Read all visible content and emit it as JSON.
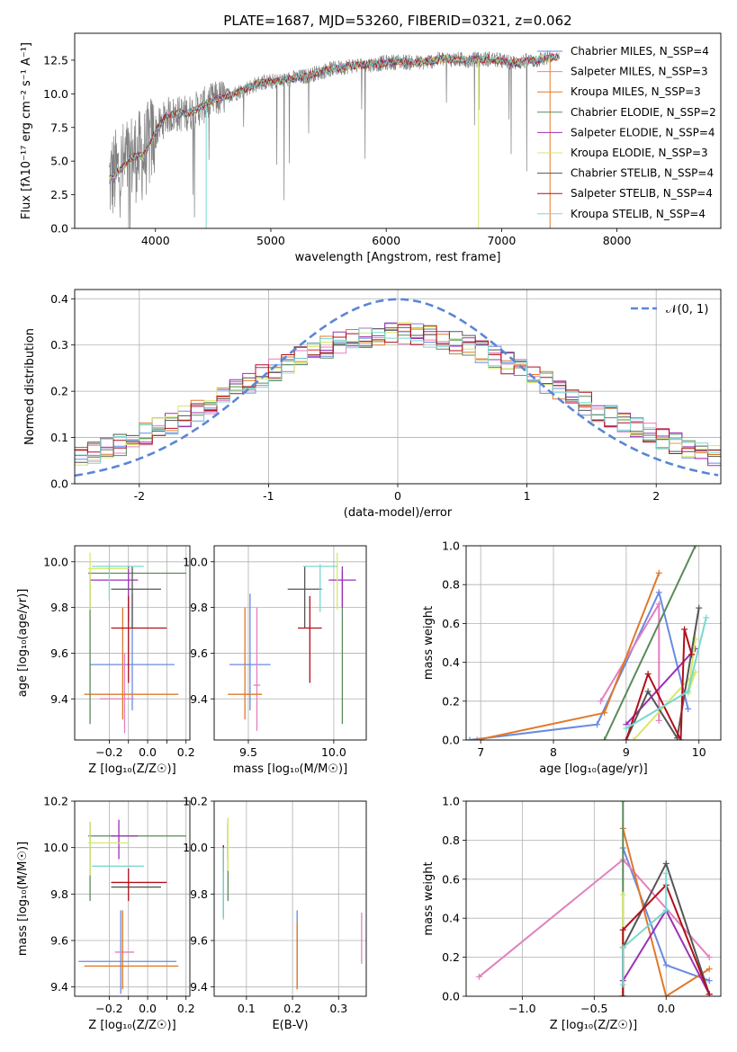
{
  "figure_title": "PLATE=1687, MJD=53260, FIBERID=0321, z=0.062",
  "colors": {
    "Chabrier MILES": "#6a8ae0",
    "Salpeter MILES": "#e47fbf",
    "Kroupa MILES": "#e0792a",
    "Chabrier ELODIE": "#5a8a5a",
    "Salpeter ELODIE": "#9b30b5",
    "Kroupa ELODIE": "#d6e86a",
    "Chabrier STELIB": "#555555",
    "Salpeter STELIB": "#b0101a",
    "Kroupa STELIB": "#78d8d0",
    "data": "#808080",
    "normal": "#5b86d6"
  },
  "chart_data": [
    {
      "id": "spectrum",
      "type": "line",
      "title": "PLATE=1687, MJD=53260, FIBERID=0321, z=0.062",
      "xlabel": "wavelength [Angstrom, rest frame]",
      "ylabel": "Flux [fλ10⁻¹⁷ erg cm⁻² s⁻¹ A⁻¹]",
      "xlim": [
        3300,
        8900
      ],
      "ylim": [
        0,
        14.5
      ],
      "xticks": [
        4000,
        5000,
        6000,
        7000,
        8000
      ],
      "yticks": [
        0.0,
        2.5,
        5.0,
        7.5,
        10.0,
        12.5
      ],
      "legend_position": "right",
      "legend": [
        "Chabrier MILES, N_SSP=4",
        "Salpeter MILES, N_SSP=3",
        "Kroupa MILES, N_SSP=3",
        "Chabrier ELODIE, N_SSP=2",
        "Salpeter ELODIE, N_SSP=4",
        "Kroupa ELODIE, N_SSP=3",
        "Chabrier STELIB, N_SSP=4",
        "Salpeter STELIB, N_SSP=4",
        "Kroupa STELIB, N_SSP=4"
      ],
      "legend_models": [
        "Chabrier MILES",
        "Salpeter MILES",
        "Kroupa MILES",
        "Chabrier ELODIE",
        "Salpeter ELODIE",
        "Kroupa ELODIE",
        "Chabrier STELIB",
        "Salpeter STELIB",
        "Kroupa STELIB"
      ],
      "continuum": {
        "x": [
          3600,
          3700,
          3800,
          3900,
          4000,
          4100,
          4300,
          4500,
          4700,
          4900,
          5100,
          5300,
          5500,
          5700,
          5900,
          6100,
          6300,
          6500,
          6700,
          6900,
          7100,
          7300,
          7500
        ],
        "y": [
          3.6,
          4.4,
          5.3,
          5.4,
          7.2,
          8.4,
          8.6,
          9.5,
          10.1,
          10.8,
          11.0,
          11.3,
          11.8,
          12.1,
          12.2,
          12.4,
          12.3,
          12.6,
          12.5,
          12.6,
          12.3,
          12.5,
          12.8
        ]
      }
    },
    {
      "id": "residuals",
      "type": "line",
      "xlabel": "(data-model)/error",
      "ylabel": "Normed distribution",
      "xlim": [
        -2.5,
        2.5
      ],
      "ylim": [
        0,
        0.42
      ],
      "xticks": [
        -2,
        -1,
        0,
        1,
        2
      ],
      "yticks": [
        0.0,
        0.1,
        0.2,
        0.3,
        0.4
      ],
      "grid": true,
      "legend_position": "top-right",
      "legend": [
        "𝒩(0, 1)"
      ]
    },
    {
      "id": "age_vs_Z",
      "type": "scatter",
      "xlabel": "Z [log₁₀(Z/Z☉)]",
      "ylabel": "age [log₁₀(age/yr)]",
      "xlim": [
        -0.38,
        0.22
      ],
      "ylim": [
        9.22,
        10.07
      ],
      "xticks": [
        -0.2,
        -0.1,
        0.0,
        0.1,
        0.2
      ],
      "xticklabels": [
        "−0.2",
        "",
        "0.0",
        "",
        "0.2"
      ],
      "yticks": [
        9.4,
        9.6,
        9.8,
        10.0
      ],
      "grid": true,
      "series": [
        {
          "model": "Chabrier MILES",
          "x": -0.08,
          "xerr": [
            0.22,
            0.22
          ],
          "y": 9.55,
          "yerr": [
            0.2,
            0.31
          ]
        },
        {
          "model": "Salpeter MILES",
          "x": -0.12,
          "xerr": [
            0.13,
            0.05
          ],
          "y": 9.4,
          "yerr": [
            0.15,
            0.2
          ]
        },
        {
          "model": "Kroupa MILES",
          "x": -0.13,
          "xerr": [
            0.2,
            0.29
          ],
          "y": 9.42,
          "yerr": [
            0.11,
            0.38
          ]
        },
        {
          "model": "Chabrier ELODIE",
          "x": -0.3,
          "xerr": [
            0.01,
            0.5
          ],
          "y": 9.95,
          "yerr": [
            0.66,
            0.01
          ]
        },
        {
          "model": "Salpeter ELODIE",
          "x": -0.1,
          "xerr": [
            0.2,
            0.05
          ],
          "y": 9.92,
          "yerr": [
            0.18,
            0.06
          ]
        },
        {
          "model": "Kroupa ELODIE",
          "x": -0.3,
          "xerr": [
            0.01,
            0.2
          ],
          "y": 9.97,
          "yerr": [
            0.18,
            0.07
          ]
        },
        {
          "model": "Chabrier STELIB",
          "x": -0.08,
          "xerr": [
            0.11,
            0.15
          ],
          "y": 9.88,
          "yerr": [
            0.17,
            0.1
          ]
        },
        {
          "model": "Salpeter STELIB",
          "x": -0.1,
          "xerr": [
            0.09,
            0.2
          ],
          "y": 9.71,
          "yerr": [
            0.24,
            0.14
          ]
        },
        {
          "model": "Kroupa STELIB",
          "x": -0.2,
          "xerr": [
            0.09,
            0.18
          ],
          "y": 9.98,
          "yerr": [
            0.15,
            0.01
          ]
        }
      ]
    },
    {
      "id": "age_vs_mass",
      "type": "scatter",
      "xlabel": "mass [log₁₀(M/M☉)]",
      "xlim": [
        9.3,
        10.19
      ],
      "ylim": [
        9.22,
        10.07
      ],
      "xticks": [
        9.5,
        10.0
      ],
      "xticklabels": [
        "9.5",
        "10.0"
      ],
      "yticks": [
        9.4,
        9.6,
        9.8,
        10.0
      ],
      "grid": true,
      "series": [
        {
          "model": "Chabrier MILES",
          "x": 9.51,
          "xerr": [
            0.12,
            0.12
          ],
          "y": 9.55,
          "yerr": [
            0.2,
            0.31
          ]
        },
        {
          "model": "Salpeter MILES",
          "x": 9.55,
          "xerr": [
            0.02,
            0.02
          ],
          "y": 9.46,
          "yerr": [
            0.2,
            0.34
          ]
        },
        {
          "model": "Kroupa MILES",
          "x": 9.48,
          "xerr": [
            0.1,
            0.1
          ],
          "y": 9.42,
          "yerr": [
            0.11,
            0.38
          ]
        },
        {
          "model": "Chabrier ELODIE",
          "x": 10.05,
          "xerr": [
            0.0,
            0.0
          ],
          "y": 9.95,
          "yerr": [
            0.66,
            0.01
          ]
        },
        {
          "model": "Salpeter ELODIE",
          "x": 10.05,
          "xerr": [
            0.08,
            0.08
          ],
          "y": 9.92,
          "yerr": [
            0.12,
            0.06
          ]
        },
        {
          "model": "Kroupa ELODIE",
          "x": 10.02,
          "xerr": [
            0.0,
            0.0
          ],
          "y": 9.97,
          "yerr": [
            0.18,
            0.07
          ]
        },
        {
          "model": "Chabrier STELIB",
          "x": 9.83,
          "xerr": [
            0.1,
            0.1
          ],
          "y": 9.88,
          "yerr": [
            0.17,
            0.1
          ]
        },
        {
          "model": "Salpeter STELIB",
          "x": 9.86,
          "xerr": [
            0.07,
            0.07
          ],
          "y": 9.71,
          "yerr": [
            0.24,
            0.14
          ]
        },
        {
          "model": "Kroupa STELIB",
          "x": 9.92,
          "xerr": [
            0.1,
            0.1
          ],
          "y": 9.98,
          "yerr": [
            0.2,
            0.01
          ]
        }
      ]
    },
    {
      "id": "mass_weight_vs_age",
      "type": "line",
      "xlabel": "age [log₁₀(age/yr)]",
      "ylabel": "mass weight",
      "xlim": [
        6.8,
        10.3
      ],
      "ylim": [
        0,
        1.0
      ],
      "xticks": [
        7,
        8,
        9,
        10
      ],
      "yticks": [
        0.0,
        0.2,
        0.4,
        0.6,
        0.8,
        1.0
      ],
      "grid": true,
      "series": [
        {
          "model": "Chabrier MILES",
          "x": [
            6.85,
            8.6,
            9.45,
            9.85
          ],
          "y": [
            0.0,
            0.08,
            0.76,
            0.16
          ]
        },
        {
          "model": "Salpeter MILES",
          "x": [
            8.65,
            9.45,
            9.45
          ],
          "y": [
            0.2,
            0.7,
            0.1
          ]
        },
        {
          "model": "Kroupa MILES",
          "x": [
            6.95,
            8.7,
            9.45
          ],
          "y": [
            0.0,
            0.14,
            0.86
          ]
        },
        {
          "model": "Chabrier ELODIE",
          "x": [
            8.7,
            9.95
          ],
          "y": [
            0.0,
            1.0
          ]
        },
        {
          "model": "Salpeter ELODIE",
          "x": [
            9.0,
            9.95
          ],
          "y": [
            0.08,
            0.47
          ]
        },
        {
          "model": "Kroupa ELODIE",
          "x": [
            9.1,
            9.95,
            9.85,
            9.95
          ],
          "y": [
            0.0,
            0.35,
            0.24,
            0.52
          ]
        },
        {
          "model": "Chabrier STELIB",
          "x": [
            9.0,
            9.3,
            9.7,
            10.0
          ],
          "y": [
            0.0,
            0.25,
            0.01,
            0.68
          ]
        },
        {
          "model": "Salpeter STELIB",
          "x": [
            9.0,
            9.3,
            9.75,
            9.8,
            9.9
          ],
          "y": [
            0.0,
            0.34,
            0.0,
            0.57,
            0.44
          ]
        },
        {
          "model": "Kroupa STELIB",
          "x": [
            9.0,
            9.85,
            10.1
          ],
          "y": [
            0.06,
            0.25,
            0.63
          ]
        }
      ]
    },
    {
      "id": "mass_vs_Z",
      "type": "scatter",
      "xlabel": "Z [log₁₀(Z/Z☉)]",
      "ylabel": "mass [log₁₀(M/M☉)]",
      "xlim": [
        -0.38,
        0.22
      ],
      "ylim": [
        9.36,
        10.2
      ],
      "xticks": [
        -0.2,
        -0.1,
        0.0,
        0.1,
        0.2
      ],
      "xticklabels": [
        "−0.2",
        "",
        "0.0",
        "",
        "0.2"
      ],
      "yticks": [
        9.4,
        9.6,
        9.8,
        10.0,
        10.2
      ],
      "grid": true,
      "series": [
        {
          "model": "Chabrier MILES",
          "x": -0.14,
          "xerr": [
            0.22,
            0.29
          ],
          "y": 9.51,
          "yerr": [
            0.14,
            0.22
          ]
        },
        {
          "model": "Salpeter MILES",
          "x": -0.12,
          "xerr": [
            0.05,
            0.05
          ],
          "y": 9.55,
          "yerr": [
            0.0,
            0.0
          ]
        },
        {
          "model": "Kroupa MILES",
          "x": -0.13,
          "xerr": [
            0.2,
            0.29
          ],
          "y": 9.49,
          "yerr": [
            0.1,
            0.24
          ]
        },
        {
          "model": "Chabrier ELODIE",
          "x": -0.3,
          "xerr": [
            0.01,
            0.5
          ],
          "y": 10.05,
          "yerr": [
            0.28,
            0.06
          ]
        },
        {
          "model": "Salpeter ELODIE",
          "x": -0.15,
          "xerr": [
            0.04,
            0.1
          ],
          "y": 10.05,
          "yerr": [
            0.1,
            0.07
          ]
        },
        {
          "model": "Kroupa ELODIE",
          "x": -0.3,
          "xerr": [
            0.01,
            0.2
          ],
          "y": 10.02,
          "yerr": [
            0.14,
            0.09
          ]
        },
        {
          "model": "Chabrier STELIB",
          "x": -0.08,
          "xerr": [
            0.11,
            0.15
          ],
          "y": 9.83,
          "yerr": [
            0.0,
            0.0
          ]
        },
        {
          "model": "Salpeter STELIB",
          "x": -0.1,
          "xerr": [
            0.09,
            0.2
          ],
          "y": 9.85,
          "yerr": [
            0.08,
            0.06
          ]
        },
        {
          "model": "Kroupa STELIB",
          "x": -0.2,
          "xerr": [
            0.09,
            0.18
          ],
          "y": 9.92,
          "yerr": [
            0.0,
            0.0
          ]
        }
      ]
    },
    {
      "id": "mass_vs_EBV",
      "type": "scatter",
      "xlabel": "E(B-V)",
      "xlim": [
        0.03,
        0.36
      ],
      "ylim": [
        9.36,
        10.2
      ],
      "xticks": [
        0.1,
        0.2,
        0.3
      ],
      "xticklabels": [
        "0.1",
        "0.2",
        "0.3"
      ],
      "yticks": [
        9.4,
        9.6,
        9.8,
        10.0,
        10.2
      ],
      "grid": true,
      "series": [
        {
          "model": "Chabrier MILES",
          "x": 0.21,
          "y": 9.51,
          "yerr": [
            0.12,
            0.22
          ]
        },
        {
          "model": "Salpeter MILES",
          "x": 0.35,
          "y": 9.61,
          "yerr": [
            0.11,
            0.11
          ]
        },
        {
          "model": "Kroupa MILES",
          "x": 0.21,
          "y": 9.51,
          "yerr": [
            0.12,
            0.17
          ]
        },
        {
          "model": "Chabrier ELODIE",
          "x": 0.06,
          "y": 9.92,
          "yerr": [
            0.15,
            0.18
          ]
        },
        {
          "model": "Salpeter ELODIE",
          "x": 0.06,
          "y": 10.05,
          "yerr": [
            0.1,
            0.07
          ]
        },
        {
          "model": "Kroupa ELODIE",
          "x": 0.06,
          "y": 10.03,
          "yerr": [
            0.13,
            0.1
          ]
        },
        {
          "model": "Chabrier STELIB",
          "x": 0.05,
          "y": 9.85,
          "yerr": [
            0.15,
            0.16
          ]
        },
        {
          "model": "Salpeter STELIB",
          "x": 0.05,
          "y": 9.95,
          "yerr": [
            0.05,
            0.06
          ]
        },
        {
          "model": "Kroupa STELIB",
          "x": 0.05,
          "y": 9.85,
          "yerr": [
            0.16,
            0.15
          ]
        }
      ]
    },
    {
      "id": "mass_weight_vs_Z",
      "type": "line",
      "xlabel": "Z [log₁₀(Z/Z☉)]",
      "ylabel": "mass weight",
      "xlim": [
        -1.39,
        0.38
      ],
      "ylim": [
        0,
        1.0
      ],
      "xticks": [
        -1.0,
        -0.5,
        0.0
      ],
      "xticklabels": [
        "−1.0",
        "−0.5",
        "0.0"
      ],
      "yticks": [
        0.0,
        0.2,
        0.4,
        0.6,
        0.8,
        1.0
      ],
      "grid": true,
      "series": [
        {
          "model": "Chabrier MILES",
          "x": [
            -0.3,
            0.0,
            0.3
          ],
          "y": [
            0.76,
            0.16,
            0.08
          ]
        },
        {
          "model": "Salpeter MILES",
          "x": [
            -1.3,
            -0.3,
            0.3
          ],
          "y": [
            0.1,
            0.7,
            0.2
          ]
        },
        {
          "model": "Kroupa MILES",
          "x": [
            -0.3,
            0.0,
            0.3
          ],
          "y": [
            0.86,
            0.0,
            0.14
          ]
        },
        {
          "model": "Chabrier ELODIE",
          "x": [
            -0.3,
            -0.3
          ],
          "y": [
            0.0,
            1.0
          ]
        },
        {
          "model": "Salpeter ELODIE",
          "x": [
            -0.3,
            0.0,
            0.3
          ],
          "y": [
            0.08,
            0.44,
            0.01
          ]
        },
        {
          "model": "Kroupa ELODIE",
          "x": [
            -0.3,
            -0.3
          ],
          "y": [
            0.0,
            0.52
          ]
        },
        {
          "model": "Chabrier STELIB",
          "x": [
            -0.3,
            -0.3,
            0.0,
            0.3
          ],
          "y": [
            0.0,
            0.25,
            0.68,
            0.01
          ]
        },
        {
          "model": "Salpeter STELIB",
          "x": [
            -0.3,
            -0.3,
            0.0,
            0.3
          ],
          "y": [
            0.0,
            0.34,
            0.57,
            0.01
          ]
        },
        {
          "model": "Kroupa STELIB",
          "x": [
            -0.3,
            -0.3,
            0.0,
            0.0
          ],
          "y": [
            0.06,
            0.25,
            0.44,
            0.63
          ]
        }
      ]
    }
  ]
}
